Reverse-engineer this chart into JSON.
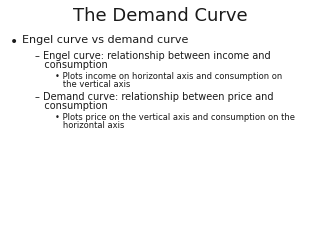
{
  "title": "The Demand Curve",
  "title_fontsize": 13,
  "title_font": "DejaVu Sans",
  "background_color": "#ffffff",
  "text_color": "#1a1a1a",
  "bullet1": "Engel curve vs demand curve",
  "bullet1_fontsize": 8.0,
  "sub1_line1": "– Engel curve: relationship between income and",
  "sub1_line2": "   consumption",
  "sub1_fontsize": 7.0,
  "sub1b_line1": "• Plots income on horizontal axis and consumption on",
  "sub1b_line2": "   the vertical axis",
  "sub1b_fontsize": 6.0,
  "sub2_line1": "– Demand curve: relationship between price and",
  "sub2_line2": "   consumption",
  "sub2_fontsize": 7.0,
  "sub2b_line1": "• Plots price on the vertical axis and consumption on the",
  "sub2b_line2": "   horizontal axis",
  "sub2b_fontsize": 6.0
}
